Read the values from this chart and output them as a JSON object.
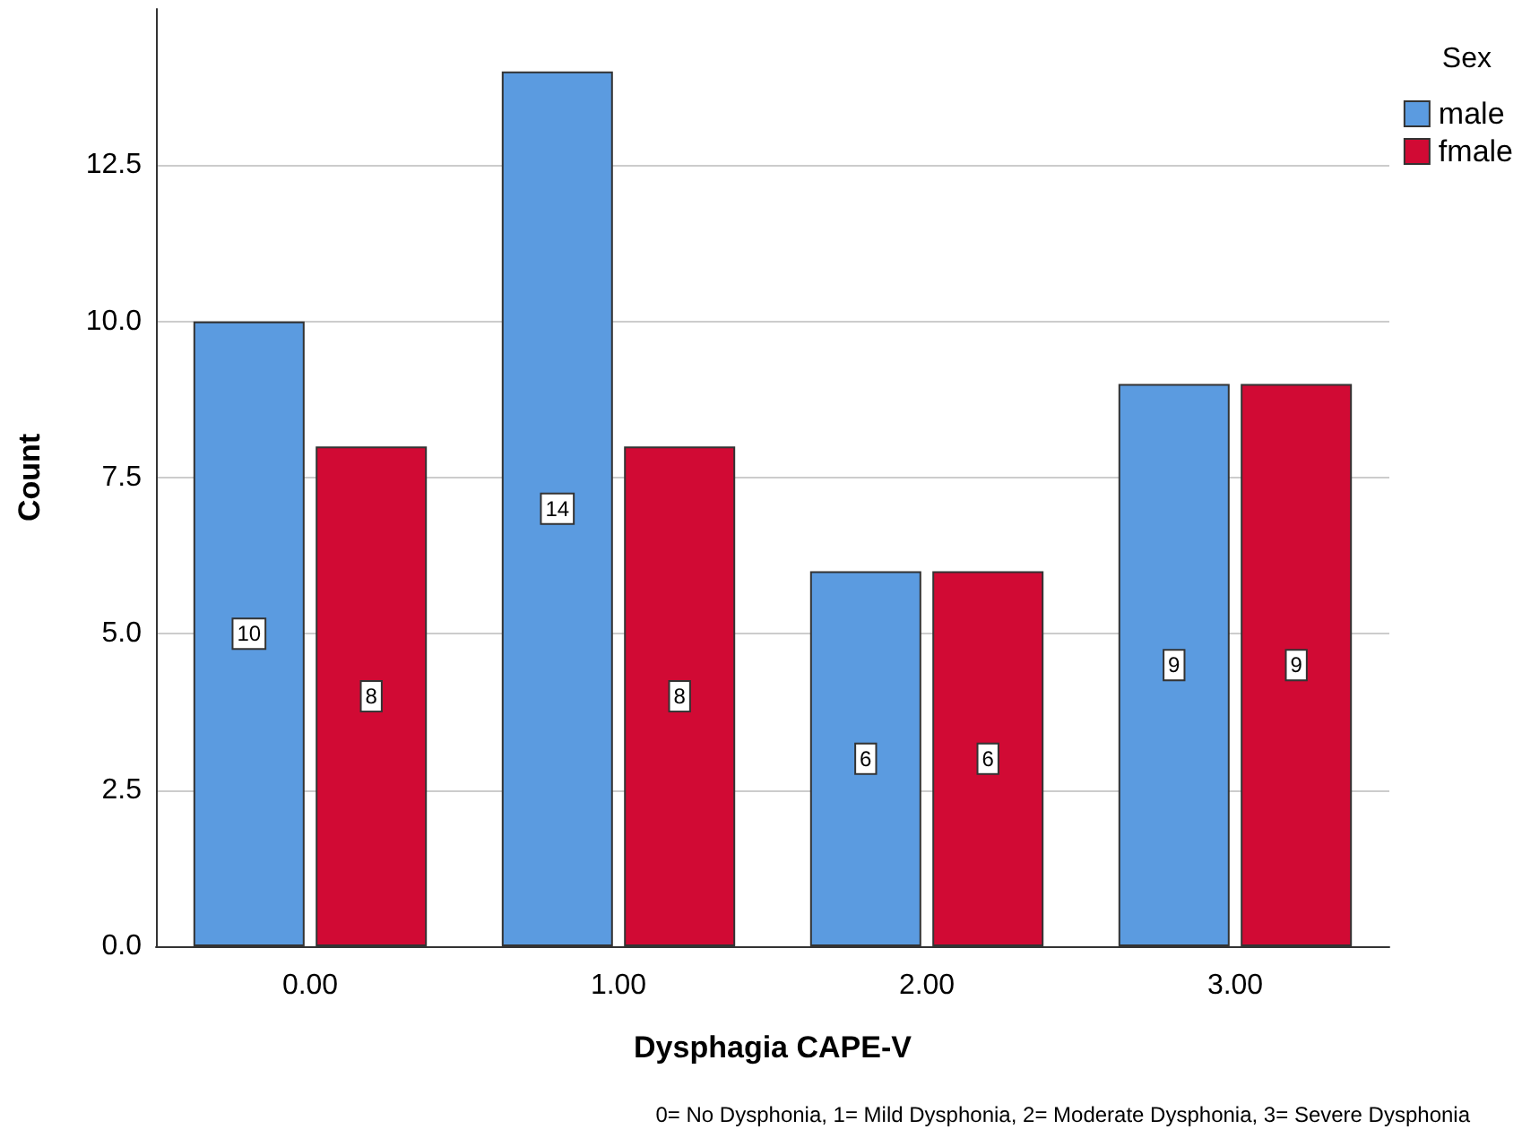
{
  "chart_data": {
    "type": "bar",
    "categories": [
      "0.00",
      "1.00",
      "2.00",
      "3.00"
    ],
    "series": [
      {
        "name": "male",
        "color": "#5b9be0",
        "values": [
          10,
          14,
          6,
          9
        ]
      },
      {
        "name": "fmale",
        "color": "#d10a34",
        "values": [
          8,
          8,
          6,
          9
        ]
      }
    ],
    "xlabel": "Dysphagia CAPE-V",
    "ylabel": "Count",
    "legend_title": "Sex",
    "ylim": [
      0,
      15
    ],
    "yticks": [
      {
        "value": 0,
        "label": "0.0"
      },
      {
        "value": 2.5,
        "label": "2.5"
      },
      {
        "value": 5,
        "label": "5.0"
      },
      {
        "value": 7.5,
        "label": "7.5"
      },
      {
        "value": 10,
        "label": "10.0"
      },
      {
        "value": 12.5,
        "label": "12.5"
      }
    ],
    "grid": "y",
    "legend": "top right",
    "data_labels": true,
    "annotations": [
      "0= No Dysphonia, 1= Mild Dysphonia, 2= Moderate Dysphonia, 3= Severe Dysphonia"
    ]
  }
}
